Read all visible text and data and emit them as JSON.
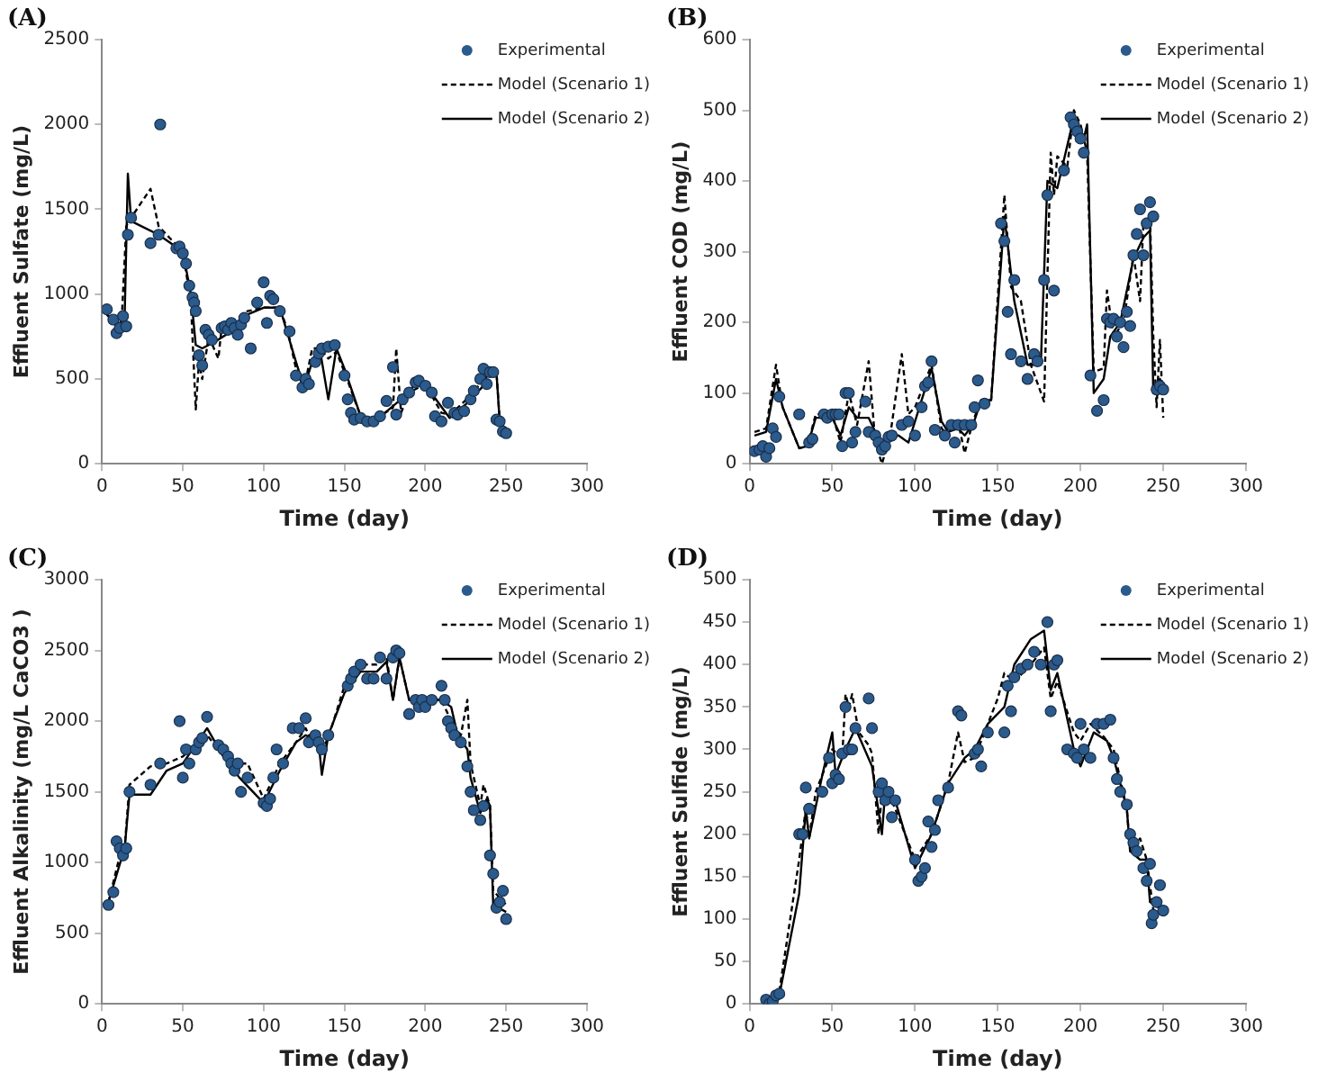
{
  "chart_data": [
    {
      "type": "line",
      "annotations": [
        "(A)"
      ],
      "xlabel": "Time (day)",
      "ylabel": "Effluent Sulfate (mg/L)",
      "xlim": [
        0,
        300
      ],
      "xticks": [
        0,
        50,
        100,
        150,
        200,
        250,
        300
      ],
      "ylim": [
        0,
        2500
      ],
      "yticks": [
        0,
        500,
        1000,
        1500,
        2000,
        2500
      ],
      "grid": false,
      "legend": "top right",
      "series": [
        {
          "name": "Experimental",
          "type": "scatter",
          "marker": "circle",
          "color": "#2b5a8c",
          "x": [
            3,
            7,
            9,
            11,
            13,
            15,
            16,
            18,
            30,
            36,
            35,
            46,
            48,
            50,
            52,
            54,
            56,
            57,
            58,
            60,
            62,
            64,
            66,
            68,
            74,
            76,
            78,
            80,
            82,
            84,
            86,
            88,
            92,
            96,
            100,
            102,
            104,
            106,
            110,
            116,
            120,
            124,
            126,
            128,
            132,
            134,
            136,
            140,
            144,
            150,
            152,
            154,
            156,
            160,
            164,
            168,
            172,
            176,
            180,
            182,
            186,
            190,
            194,
            196,
            200,
            204,
            206,
            210,
            214,
            218,
            220,
            224,
            228,
            230,
            234,
            236,
            238,
            240,
            242,
            244,
            246,
            248,
            250
          ],
          "values": [
            910,
            850,
            770,
            800,
            870,
            810,
            1350,
            1450,
            1300,
            2000,
            1350,
            1270,
            1280,
            1240,
            1180,
            1050,
            980,
            950,
            900,
            640,
            580,
            790,
            760,
            730,
            800,
            810,
            790,
            830,
            800,
            760,
            820,
            860,
            680,
            950,
            1070,
            830,
            990,
            970,
            900,
            780,
            520,
            450,
            500,
            470,
            600,
            650,
            680,
            690,
            700,
            520,
            380,
            300,
            260,
            270,
            250,
            250,
            280,
            370,
            570,
            290,
            380,
            420,
            480,
            490,
            460,
            420,
            280,
            250,
            360,
            300,
            290,
            310,
            380,
            430,
            500,
            560,
            470,
            540,
            540,
            260,
            250,
            190,
            180
          ]
        },
        {
          "name": "Model (Scenario 1)",
          "type": "line",
          "line_style": "dashed",
          "color": "#000000",
          "x": [
            3,
            8,
            12,
            15,
            18,
            30,
            35,
            50,
            55,
            58,
            60,
            62,
            66,
            72,
            74,
            80,
            90,
            100,
            110,
            115,
            120,
            125,
            130,
            135,
            140,
            145,
            150,
            160,
            170,
            175,
            180,
            182,
            185,
            190,
            200,
            210,
            215,
            220,
            230,
            240,
            244,
            246,
            250
          ],
          "values": [
            880,
            820,
            810,
            1400,
            1450,
            1620,
            1400,
            1250,
            950,
            320,
            600,
            500,
            750,
            620,
            800,
            780,
            900,
            920,
            920,
            780,
            560,
            440,
            680,
            680,
            620,
            660,
            540,
            280,
            250,
            300,
            330,
            680,
            300,
            420,
            470,
            300,
            290,
            330,
            420,
            560,
            540,
            260,
            200
          ]
        },
        {
          "name": "Model (Scenario 2)",
          "type": "line",
          "line_style": "solid",
          "color": "#000000",
          "x": [
            3,
            10,
            14,
            16,
            18,
            35,
            50,
            55,
            58,
            62,
            70,
            80,
            90,
            100,
            110,
            115,
            120,
            125,
            130,
            135,
            140,
            145,
            150,
            160,
            170,
            180,
            185,
            195,
            205,
            215,
            225,
            235,
            240,
            244,
            246,
            250
          ],
          "values": [
            880,
            820,
            860,
            1710,
            1430,
            1350,
            1250,
            1000,
            700,
            680,
            720,
            780,
            880,
            920,
            920,
            760,
            600,
            450,
            600,
            660,
            380,
            680,
            560,
            280,
            260,
            340,
            380,
            480,
            400,
            270,
            350,
            450,
            560,
            540,
            250,
            200
          ]
        }
      ]
    },
    {
      "type": "line",
      "annotations": [
        "(B)"
      ],
      "xlabel": "Time (day)",
      "ylabel": "Effluent COD (mg/L)",
      "xlim": [
        0,
        300
      ],
      "xticks": [
        0,
        50,
        100,
        150,
        200,
        250,
        300
      ],
      "ylim": [
        0,
        600
      ],
      "yticks": [
        0,
        100,
        200,
        300,
        400,
        500,
        600
      ],
      "grid": false,
      "legend": "top right",
      "series": [
        {
          "name": "Experimental",
          "type": "scatter",
          "marker": "circle",
          "color": "#2b5a8c",
          "x": [
            3,
            6,
            8,
            10,
            12,
            14,
            16,
            18,
            30,
            36,
            38,
            45,
            47,
            50,
            52,
            54,
            56,
            58,
            60,
            62,
            64,
            70,
            72,
            76,
            78,
            80,
            82,
            84,
            86,
            92,
            96,
            100,
            104,
            106,
            108,
            110,
            112,
            118,
            122,
            124,
            126,
            130,
            134,
            136,
            138,
            142,
            152,
            154,
            156,
            158,
            160,
            164,
            168,
            172,
            174,
            178,
            180,
            184,
            190,
            194,
            196,
            198,
            200,
            202,
            206,
            210,
            214,
            216,
            218,
            220,
            222,
            224,
            226,
            228,
            230,
            232,
            234,
            236,
            238,
            240,
            242,
            244,
            246,
            248,
            250
          ],
          "values": [
            18,
            20,
            25,
            10,
            22,
            50,
            38,
            95,
            70,
            30,
            35,
            70,
            65,
            70,
            70,
            70,
            25,
            100,
            100,
            30,
            45,
            88,
            45,
            40,
            30,
            20,
            25,
            38,
            40,
            55,
            60,
            40,
            80,
            110,
            115,
            145,
            48,
            40,
            55,
            30,
            55,
            55,
            55,
            80,
            118,
            85,
            340,
            315,
            215,
            155,
            260,
            145,
            120,
            155,
            145,
            260,
            380,
            245,
            415,
            490,
            480,
            470,
            460,
            440,
            125,
            75,
            90,
            205,
            200,
            205,
            180,
            200,
            165,
            215,
            195,
            295,
            325,
            360,
            295,
            340,
            370,
            350,
            105,
            110,
            105
          ]
        },
        {
          "name": "Model (Scenario 1)",
          "type": "line",
          "line_style": "dashed",
          "color": "#000000",
          "x": [
            3,
            10,
            16,
            20,
            30,
            35,
            40,
            50,
            55,
            60,
            65,
            72,
            76,
            80,
            85,
            92,
            96,
            100,
            110,
            116,
            120,
            126,
            130,
            135,
            140,
            146,
            154,
            158,
            164,
            170,
            178,
            182,
            184,
            186,
            192,
            196,
            200,
            204,
            208,
            214,
            216,
            220,
            226,
            232,
            236,
            238,
            242,
            244,
            246,
            248,
            250
          ],
          "values": [
            45,
            50,
            140,
            80,
            22,
            25,
            70,
            70,
            30,
            100,
            55,
            145,
            30,
            0,
            40,
            155,
            70,
            80,
            140,
            50,
            40,
            60,
            15,
            60,
            90,
            90,
            380,
            250,
            230,
            140,
            88,
            440,
            380,
            435,
            420,
            500,
            480,
            440,
            130,
            135,
            245,
            180,
            200,
            295,
            230,
            340,
            350,
            180,
            80,
            175,
            65
          ]
        },
        {
          "name": "Model (Scenario 2)",
          "type": "line",
          "line_style": "solid",
          "color": "#000000",
          "x": [
            3,
            10,
            16,
            20,
            30,
            35,
            40,
            50,
            55,
            60,
            65,
            72,
            76,
            80,
            85,
            90,
            96,
            100,
            110,
            116,
            120,
            126,
            130,
            135,
            140,
            146,
            154,
            160,
            168,
            176,
            180,
            186,
            196,
            202,
            204,
            208,
            214,
            218,
            224,
            232,
            238,
            242,
            244,
            248,
            250
          ],
          "values": [
            40,
            45,
            120,
            80,
            22,
            25,
            65,
            65,
            40,
            80,
            65,
            65,
            45,
            25,
            40,
            40,
            30,
            60,
            135,
            60,
            45,
            50,
            40,
            55,
            90,
            90,
            350,
            230,
            140,
            140,
            400,
            390,
            490,
            460,
            480,
            100,
            120,
            180,
            200,
            290,
            320,
            330,
            100,
            120,
            105
          ]
        }
      ]
    },
    {
      "type": "line",
      "annotations": [
        "(C)"
      ],
      "xlabel": "Time (day)",
      "ylabel": "Effluent Alkalinity (mg/L CaCO3 )",
      "xlim": [
        0,
        300
      ],
      "xticks": [
        0,
        50,
        100,
        150,
        200,
        250,
        300
      ],
      "ylim": [
        0,
        3000
      ],
      "yticks": [
        0,
        500,
        1000,
        1500,
        2000,
        2500,
        3000
      ],
      "grid": false,
      "legend": "top right",
      "series": [
        {
          "name": "Experimental",
          "type": "scatter",
          "marker": "circle",
          "color": "#2b5a8c",
          "x": [
            4,
            7,
            9,
            11,
            13,
            15,
            17,
            30,
            36,
            48,
            50,
            52,
            54,
            58,
            60,
            62,
            65,
            72,
            75,
            78,
            80,
            82,
            84,
            86,
            90,
            100,
            102,
            104,
            106,
            108,
            112,
            118,
            122,
            126,
            128,
            132,
            134,
            136,
            140,
            152,
            154,
            156,
            160,
            164,
            168,
            172,
            176,
            180,
            182,
            184,
            190,
            194,
            196,
            198,
            200,
            204,
            210,
            212,
            214,
            216,
            218,
            222,
            226,
            228,
            230,
            234,
            236,
            240,
            242,
            244,
            246,
            248,
            250
          ],
          "values": [
            700,
            790,
            1150,
            1100,
            1050,
            1100,
            1500,
            1550,
            1700,
            2000,
            1600,
            1800,
            1700,
            1800,
            1850,
            1880,
            2030,
            1830,
            1800,
            1750,
            1700,
            1650,
            1700,
            1500,
            1600,
            1420,
            1400,
            1450,
            1600,
            1800,
            1700,
            1950,
            1950,
            2020,
            1850,
            1900,
            1850,
            1800,
            1900,
            2250,
            2300,
            2350,
            2400,
            2300,
            2300,
            2450,
            2300,
            2450,
            2500,
            2480,
            2050,
            2150,
            2100,
            2150,
            2100,
            2150,
            2250,
            2150,
            2000,
            1950,
            1900,
            1850,
            1680,
            1500,
            1370,
            1300,
            1400,
            1050,
            920,
            680,
            720,
            800,
            600
          ]
        },
        {
          "name": "Model (Scenario 1)",
          "type": "line",
          "line_style": "dashed",
          "color": "#000000",
          "x": [
            4,
            10,
            14,
            17,
            30,
            40,
            50,
            65,
            72,
            80,
            90,
            100,
            110,
            120,
            126,
            130,
            136,
            140,
            150,
            160,
            170,
            176,
            180,
            184,
            190,
            200,
            210,
            216,
            222,
            226,
            228,
            234,
            236,
            240,
            242,
            250
          ],
          "values": [
            720,
            1000,
            1100,
            1550,
            1680,
            1700,
            1750,
            1900,
            1800,
            1700,
            1700,
            1450,
            1700,
            1850,
            1950,
            1850,
            1800,
            1880,
            2250,
            2400,
            2400,
            2450,
            2150,
            2450,
            2150,
            2150,
            2150,
            2000,
            1900,
            2150,
            1700,
            1400,
            1550,
            1400,
            800,
            700
          ]
        },
        {
          "name": "Model (Scenario 2)",
          "type": "line",
          "line_style": "solid",
          "color": "#000000",
          "x": [
            4,
            10,
            14,
            17,
            30,
            40,
            50,
            65,
            75,
            85,
            100,
            110,
            120,
            126,
            134,
            136,
            140,
            150,
            160,
            170,
            176,
            180,
            184,
            190,
            200,
            210,
            216,
            220,
            226,
            228,
            234,
            238,
            240,
            242,
            250
          ],
          "values": [
            720,
            950,
            1100,
            1480,
            1480,
            1650,
            1700,
            1950,
            1750,
            1600,
            1420,
            1650,
            1850,
            1900,
            1850,
            1620,
            1900,
            2200,
            2350,
            2350,
            2420,
            2150,
            2450,
            2150,
            2150,
            2150,
            2100,
            1900,
            1800,
            1600,
            1350,
            1450,
            1400,
            700,
            650
          ]
        }
      ]
    },
    {
      "type": "line",
      "annotations": [
        "(D)"
      ],
      "xlabel": "Time (day)",
      "ylabel": "Effluent Sulfide (mg/L)",
      "xlim": [
        0,
        300
      ],
      "xticks": [
        0,
        50,
        100,
        150,
        200,
        250,
        300
      ],
      "ylim": [
        0,
        500
      ],
      "yticks": [
        0,
        50,
        100,
        150,
        200,
        250,
        300,
        350,
        400,
        450,
        500
      ],
      "grid": false,
      "legend": "top right",
      "series": [
        {
          "name": "Experimental",
          "type": "scatter",
          "marker": "circle",
          "color": "#2b5a8c",
          "x": [
            10,
            12,
            14,
            16,
            18,
            30,
            32,
            34,
            36,
            44,
            48,
            50,
            52,
            54,
            56,
            58,
            60,
            62,
            64,
            72,
            74,
            78,
            80,
            82,
            84,
            86,
            88,
            100,
            102,
            104,
            106,
            108,
            110,
            112,
            114,
            120,
            126,
            128,
            136,
            138,
            140,
            144,
            154,
            156,
            158,
            160,
            164,
            168,
            172,
            176,
            180,
            182,
            184,
            186,
            192,
            196,
            198,
            200,
            202,
            206,
            210,
            214,
            218,
            220,
            222,
            224,
            228,
            230,
            232,
            234,
            238,
            240,
            242,
            243,
            244,
            246,
            248,
            250
          ],
          "values": [
            5,
            0,
            3,
            10,
            12,
            200,
            200,
            255,
            230,
            250,
            290,
            260,
            270,
            265,
            295,
            350,
            300,
            300,
            325,
            360,
            325,
            250,
            260,
            240,
            250,
            220,
            240,
            170,
            145,
            150,
            160,
            215,
            185,
            205,
            240,
            255,
            345,
            340,
            295,
            300,
            280,
            320,
            320,
            375,
            345,
            385,
            395,
            400,
            415,
            400,
            450,
            345,
            400,
            405,
            300,
            295,
            290,
            330,
            300,
            290,
            330,
            330,
            335,
            290,
            265,
            250,
            235,
            200,
            190,
            180,
            160,
            145,
            165,
            95,
            105,
            120,
            140,
            110
          ]
        },
        {
          "name": "Model (Scenario 1)",
          "type": "line",
          "line_style": "dashed",
          "color": "#000000",
          "x": [
            10,
            18,
            30,
            34,
            36,
            40,
            50,
            56,
            58,
            60,
            62,
            66,
            72,
            74,
            78,
            80,
            86,
            100,
            110,
            120,
            126,
            130,
            136,
            150,
            154,
            160,
            170,
            178,
            182,
            186,
            196,
            200,
            206,
            214,
            220,
            228,
            230,
            236,
            240,
            244,
            250
          ],
          "values": [
            0,
            15,
            170,
            230,
            195,
            250,
            300,
            290,
            365,
            350,
            365,
            320,
            305,
            295,
            200,
            250,
            240,
            170,
            200,
            260,
            320,
            285,
            290,
            360,
            390,
            380,
            400,
            420,
            360,
            380,
            320,
            310,
            330,
            315,
            300,
            230,
            180,
            195,
            170,
            110,
            115
          ]
        },
        {
          "name": "Model (Scenario 2)",
          "type": "line",
          "line_style": "solid",
          "color": "#000000",
          "x": [
            10,
            18,
            30,
            34,
            36,
            44,
            50,
            52,
            58,
            64,
            74,
            80,
            82,
            88,
            100,
            110,
            120,
            130,
            136,
            144,
            154,
            160,
            170,
            178,
            182,
            186,
            196,
            200,
            208,
            216,
            220,
            228,
            230,
            236,
            240,
            242,
            250
          ],
          "values": [
            0,
            10,
            130,
            230,
            195,
            270,
            320,
            270,
            300,
            325,
            280,
            200,
            250,
            240,
            160,
            200,
            260,
            290,
            300,
            330,
            350,
            400,
            430,
            440,
            370,
            390,
            300,
            280,
            320,
            310,
            290,
            230,
            180,
            170,
            170,
            120,
            110
          ]
        }
      ]
    }
  ]
}
